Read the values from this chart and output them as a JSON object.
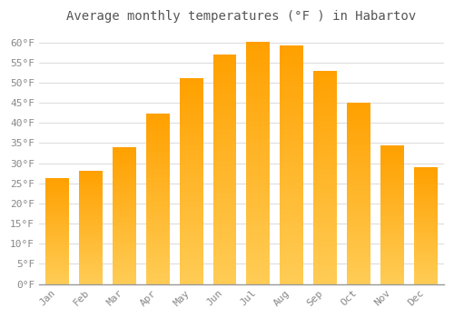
{
  "title": "Average monthly temperatures (°F ) in Habartov",
  "months": [
    "Jan",
    "Feb",
    "Mar",
    "Apr",
    "May",
    "Jun",
    "Jul",
    "Aug",
    "Sep",
    "Oct",
    "Nov",
    "Dec"
  ],
  "temperatures": [
    26.3,
    28.2,
    34.0,
    42.3,
    51.1,
    57.0,
    60.1,
    59.2,
    53.0,
    45.0,
    34.3,
    29.0
  ],
  "bar_color_main": "#FFA500",
  "bar_color_light": "#FFD060",
  "ylim": [
    0,
    63
  ],
  "yticks": [
    0,
    5,
    10,
    15,
    20,
    25,
    30,
    35,
    40,
    45,
    50,
    55,
    60
  ],
  "ytick_labels": [
    "0°F",
    "5°F",
    "10°F",
    "15°F",
    "20°F",
    "25°F",
    "30°F",
    "35°F",
    "40°F",
    "45°F",
    "50°F",
    "55°F",
    "60°F"
  ],
  "background_color": "#ffffff",
  "plot_bg_color": "#ffffff",
  "grid_color": "#dddddd",
  "title_fontsize": 10,
  "tick_fontsize": 8,
  "tick_color": "#888888",
  "title_color": "#555555",
  "bar_width": 0.7
}
